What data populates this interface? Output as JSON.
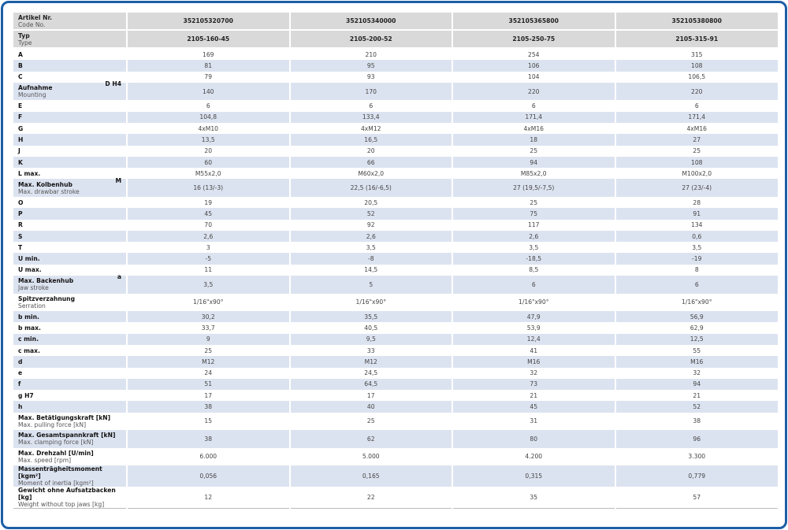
{
  "header": [
    {
      "label": "Artikel Nr.",
      "sub": "Code No.",
      "values": [
        "352105320700",
        "352105340000",
        "352105365800",
        "352105380800"
      ]
    },
    {
      "label": "Typ",
      "sub": "Type",
      "values": [
        "2105-160-45",
        "2105-200-52",
        "2105-250-75",
        "2105-315-91"
      ]
    }
  ],
  "rows": [
    {
      "label": "A",
      "values": [
        "169",
        "210",
        "254",
        "315"
      ]
    },
    {
      "label": "B",
      "values": [
        "81",
        "95",
        "106",
        "108"
      ]
    },
    {
      "label": "C",
      "values": [
        "79",
        "93",
        "104",
        "106,5"
      ]
    },
    {
      "label": "Aufnahme",
      "sub": "Mounting",
      "sym": "D H4",
      "values": [
        "140",
        "170",
        "220",
        "220"
      ]
    },
    {
      "label": "E",
      "values": [
        "6",
        "6",
        "6",
        "6"
      ]
    },
    {
      "label": "F",
      "values": [
        "104,8",
        "133,4",
        "171,4",
        "171,4"
      ]
    },
    {
      "label": "G",
      "values": [
        "4xM10",
        "4xM12",
        "4xM16",
        "4xM16"
      ]
    },
    {
      "label": "H",
      "values": [
        "13,5",
        "16,5",
        "18",
        "27"
      ]
    },
    {
      "label": "J",
      "values": [
        "20",
        "20",
        "25",
        "25"
      ]
    },
    {
      "label": "K",
      "values": [
        "60",
        "66",
        "94",
        "108"
      ]
    },
    {
      "label": "L max.",
      "values": [
        "M55x2,0",
        "M60x2,0",
        "M85x2,0",
        "M100x2,0"
      ]
    },
    {
      "label": "Max. Kolbenhub",
      "sub": "Max. drawbar stroke",
      "sym": "M",
      "values": [
        "16 (13/-3)",
        "22,5 (16/-6,5)",
        "27 (19,5/-7,5)",
        "27 (23/-4)"
      ]
    },
    {
      "label": "O",
      "values": [
        "19",
        "20,5",
        "25",
        "28"
      ]
    },
    {
      "label": "P",
      "values": [
        "45",
        "52",
        "75",
        "91"
      ]
    },
    {
      "label": "R",
      "values": [
        "70",
        "92",
        "117",
        "134"
      ]
    },
    {
      "label": "S",
      "values": [
        "2,6",
        "2,6",
        "2,6",
        "0,6"
      ]
    },
    {
      "label": "T",
      "values": [
        "3",
        "3,5",
        "3,5",
        "3,5"
      ]
    },
    {
      "label": "U min.",
      "values": [
        "-5",
        "-8",
        "-18,5",
        "-19"
      ]
    },
    {
      "label": "U max.",
      "values": [
        "11",
        "14,5",
        "8,5",
        "8"
      ]
    },
    {
      "label": "Max. Backenhub",
      "sub": "Jaw stroke",
      "sym": "a",
      "values": [
        "3,5",
        "5",
        "6",
        "6"
      ]
    },
    {
      "label": "Spitzverzahnung",
      "sub": "Serration",
      "values": [
        "1/16\"x90°",
        "1/16\"x90°",
        "1/16\"x90°",
        "1/16\"x90°"
      ]
    },
    {
      "label": "b min.",
      "values": [
        "30,2",
        "35,5",
        "47,9",
        "56,9"
      ]
    },
    {
      "label": "b max.",
      "values": [
        "33,7",
        "40,5",
        "53,9",
        "62,9"
      ]
    },
    {
      "label": "c min.",
      "values": [
        "9",
        "9,5",
        "12,4",
        "12,5"
      ]
    },
    {
      "label": "c max.",
      "values": [
        "25",
        "33",
        "41",
        "55"
      ]
    },
    {
      "label": "d",
      "values": [
        "M12",
        "M12",
        "M16",
        "M16"
      ]
    },
    {
      "label": "e",
      "values": [
        "24",
        "24,5",
        "32",
        "32"
      ]
    },
    {
      "label": "f",
      "values": [
        "51",
        "64,5",
        "73",
        "94"
      ]
    },
    {
      "label": "g H7",
      "values": [
        "17",
        "17",
        "21",
        "21"
      ]
    },
    {
      "label": "h",
      "values": [
        "38",
        "40",
        "45",
        "52"
      ]
    },
    {
      "label": "Max. Betätigungskraft  [kN]",
      "sub": "Max. pulling force [kN]",
      "values": [
        "15",
        "25",
        "31",
        "38"
      ]
    },
    {
      "label": "Max. Gesamtspannkraft  [kN]",
      "sub": "Max. clamping force [kN]",
      "values": [
        "38",
        "62",
        "80",
        "96"
      ]
    },
    {
      "label": "Max. Drehzahl [U/min]",
      "sub": "Max. speed [rpm]",
      "values": [
        "6.000",
        "5.000",
        "4.200",
        "3.300"
      ]
    },
    {
      "label": "Massenträgheitsmoment [kgm²]",
      "sub": "Moment of inertia [kgm²]",
      "values": [
        "0,056",
        "0,165",
        "0,315",
        "0,779"
      ]
    },
    {
      "label": "Gewicht ohne Aufsatzbacken [kg]",
      "sub": "Weight without top jaws [kg]",
      "values": [
        "12",
        "22",
        "35",
        "57"
      ]
    }
  ],
  "colors": {
    "frame": "#1c5ea6",
    "header_bg": "#d9d9d9",
    "stripe": "#dce3f0"
  }
}
